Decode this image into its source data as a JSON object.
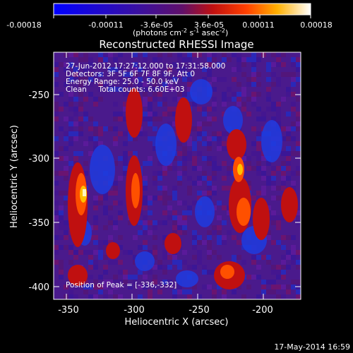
{
  "colorbar": {
    "ticks": [
      "-0.00018",
      "-0.00011",
      "-3.6e-05",
      "3.6e-05",
      "0.00011",
      "0.00018"
    ],
    "units_prefix": "(photons cm",
    "units_exp1": "-2",
    "units_mid": " s",
    "units_exp2": "-1",
    "units_mid2": " asec",
    "units_exp3": "-2",
    "units_suffix": ")"
  },
  "title": "Reconstructed RHESSI Image",
  "annotations": {
    "line1": "27-Jun-2012 17:27:12.000 to 17:31:58.000",
    "line2": "Detectors: 3F 5F 6F 7F 8F 9F, Att 0",
    "line3": "Energy Range: 25.0 - 50.0 keV",
    "line4": "Clean     Total counts: 6.60E+03",
    "peak": "Position of Peak = [-336,-332]"
  },
  "axes": {
    "xlabel": "Heliocentric X (arcsec)",
    "ylabel": "Heliocentric Y (arcsec)",
    "xticks": [
      "-350",
      "-300",
      "-250",
      "-200"
    ],
    "yticks": [
      "-250",
      "-300",
      "-350",
      "-400"
    ]
  },
  "footer": {
    "date": "17-May-2014 16:59"
  }
}
